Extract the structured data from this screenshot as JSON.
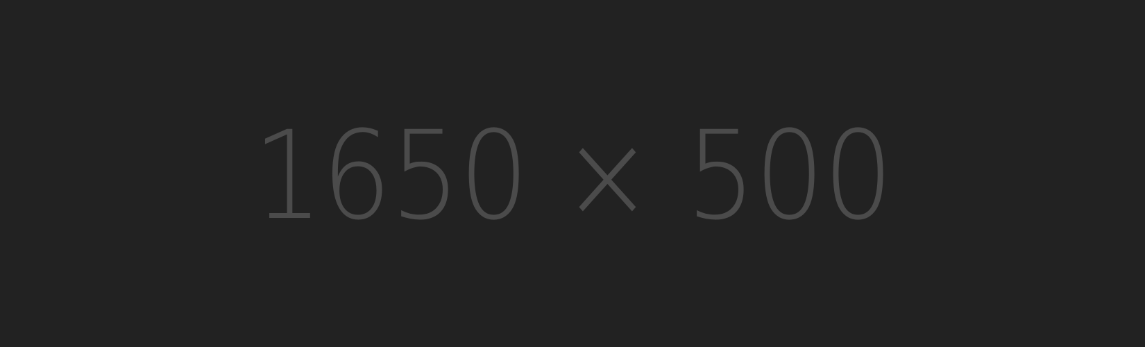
{
  "placeholder": {
    "text": "1650 × 500",
    "background_color": "#222222",
    "text_color": "#4b4b4b"
  }
}
